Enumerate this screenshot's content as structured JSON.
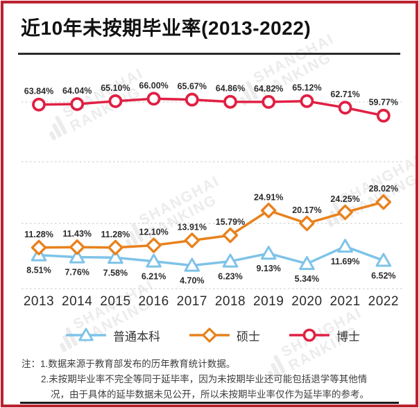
{
  "title": "近10年未按期毕业率(2013-2022)",
  "chart_data": {
    "type": "line",
    "categories": [
      "2013",
      "2014",
      "2015",
      "2016",
      "2017",
      "2018",
      "2019",
      "2020",
      "2021",
      "2022"
    ],
    "series": [
      {
        "name": "普通本科",
        "marker": "triangle",
        "color": "#7EC3E8",
        "label_position": "below",
        "values": [
          8.51,
          7.76,
          7.58,
          6.21,
          4.7,
          6.23,
          9.13,
          5.34,
          11.69,
          6.52
        ],
        "labels": [
          "8.51%",
          "7.76%",
          "7.58%",
          "6.21%",
          "4.70%",
          "6.23%",
          "9.13%",
          "5.34%",
          "11.69%",
          "6.52%"
        ]
      },
      {
        "name": "硕士",
        "marker": "diamond",
        "color": "#E8811C",
        "label_position": "above",
        "values": [
          11.28,
          11.43,
          11.28,
          12.1,
          13.91,
          15.79,
          24.91,
          20.17,
          24.25,
          28.02
        ],
        "labels": [
          "11.28%",
          "11.43%",
          "11.28%",
          "12.10%",
          "13.91%",
          "15.79%",
          "24.91%",
          "20.17%",
          "24.25%",
          "28.02%"
        ]
      },
      {
        "name": "博士",
        "marker": "circle",
        "color": "#E02043",
        "label_position": "above",
        "values": [
          63.84,
          64.04,
          65.1,
          66.0,
          65.67,
          64.86,
          64.82,
          65.12,
          62.71,
          59.77
        ],
        "labels": [
          "63.84%",
          "64.04%",
          "65.10%",
          "66.00%",
          "65.67%",
          "64.86%",
          "64.82%",
          "65.12%",
          "62.71%",
          "59.77%"
        ]
      }
    ],
    "xlabel": "",
    "ylabel": "",
    "ylim": [
      0,
      70
    ],
    "grid": "horizontal-dotted",
    "legend_position": "bottom"
  },
  "notes": {
    "prefix": "注：",
    "lines": [
      "1.数据来源于教育部发布的历年教育统计数据。",
      "2.未按期毕业率不完全等同于延毕率，因为未按期毕业还可能包括退学等其他情",
      "况，由于具体的延毕数据未见公开，所以未按期毕业率仅作为延毕率的参考。"
    ]
  },
  "watermark": {
    "line1": "SHANGHAI",
    "line2": "RANKING"
  },
  "colors": {
    "frame_border": "#BC2231",
    "title_text": "#111111",
    "rule": "#1A1A1A",
    "grid_line": "#D9D9D9",
    "data_label": "#2B2B2B",
    "axis_label": "#2A2A2A",
    "note_text": "#3D3D3D",
    "watermark": "#ECECEC"
  }
}
